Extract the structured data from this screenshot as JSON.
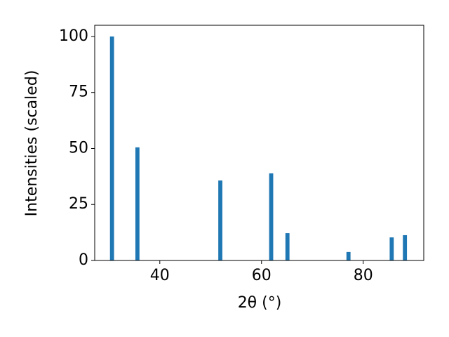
{
  "chart_data": {
    "type": "bar",
    "x": [
      30.6,
      35.6,
      51.9,
      61.9,
      65.1,
      77.1,
      85.6,
      88.2
    ],
    "values": [
      100,
      50.5,
      35.7,
      38.9,
      12.2,
      3.8,
      10.3,
      11.3
    ],
    "color": "#1f77b4",
    "bar_width": 0.8,
    "x_label": "2θ (°)",
    "y_label": "Intensities (scaled)",
    "xlim": [
      27.2,
      91.9
    ],
    "xticks": [
      40,
      60,
      80
    ],
    "ylim": [
      0,
      105
    ],
    "yticks": [
      0,
      25,
      50,
      75,
      100
    ]
  }
}
